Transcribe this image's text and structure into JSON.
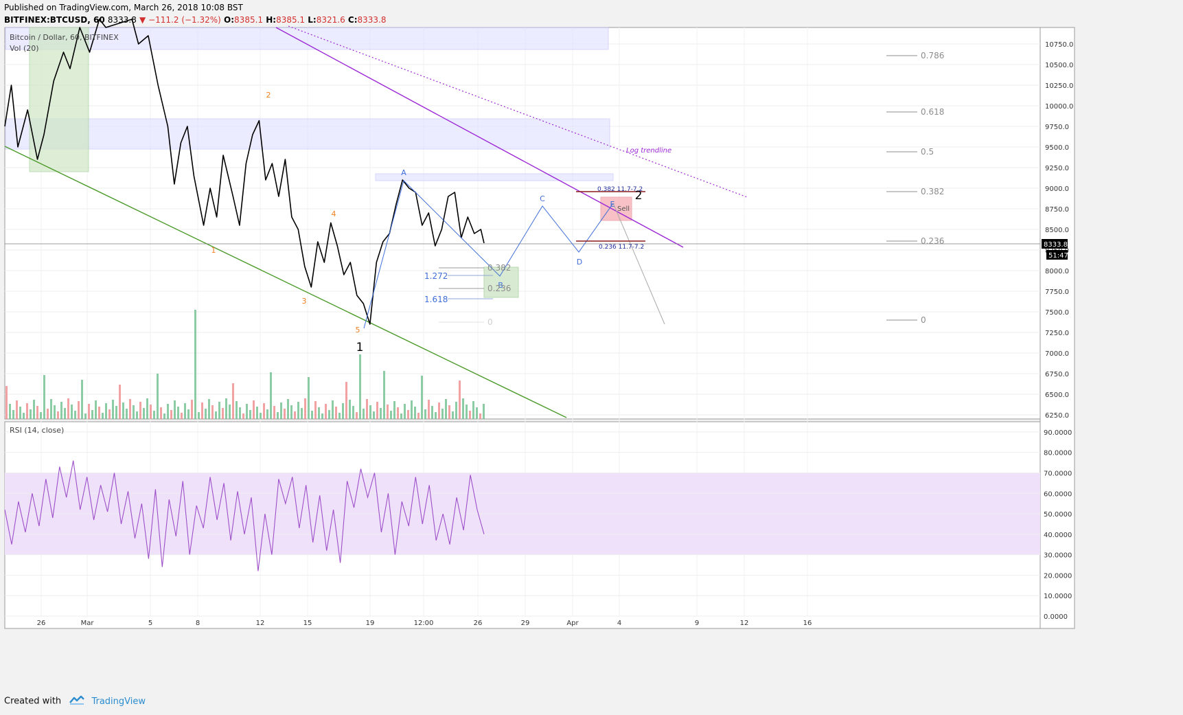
{
  "header": {
    "published": "Published on TradingView.com, March 26, 2018 10:08 BST",
    "symbol": "BITFINEX:BTCUSD, 60",
    "last": "8333.8",
    "change": "▼ −111.2 (−1.32%)",
    "ohlc": [
      {
        "label": "O:",
        "value": "8385.1"
      },
      {
        "label": "H:",
        "value": "8385.1"
      },
      {
        "label": "L:",
        "value": "8321.6"
      },
      {
        "label": "C:",
        "value": "8333.8"
      }
    ]
  },
  "footer": {
    "created_with": "Created with",
    "brand": "TradingView"
  },
  "colors": {
    "price": "#000000",
    "volume_up": "#6fbf8f",
    "volume_down": "#ef8b8b",
    "green_trend": "#4c9a2a",
    "purple_trend": "#9c27d6",
    "rsi": "#9c4fc8",
    "rsi_band": "#f0e1fb",
    "fib_box": "#dfe1ff",
    "abcde": "#3f6ed8",
    "wave_labels": "#f07f1e",
    "sell_box": "#f6a8ae",
    "grey": "#8c8c8c"
  },
  "chart_data": [
    {
      "type": "line",
      "title": "Bitcoin / Dollar, 60, BITFINEX",
      "indicator": "Vol (20)",
      "x_ticks": [
        "26",
        "Mar",
        "5",
        "8",
        "12",
        "15",
        "19",
        "12:00",
        "26",
        "29",
        "Apr",
        "4",
        "9",
        "12",
        "16"
      ],
      "y_ticks": [
        "10750.0",
        "10500.0",
        "10250.0",
        "10000.0",
        "9750.0",
        "9500.0",
        "9250.0",
        "9000.0",
        "8750.0",
        "8500.0",
        "8250.0",
        "8000.0",
        "7750.0",
        "7500.0",
        "7250.0",
        "7000.0",
        "6750.0",
        "6500.0",
        "6250.0"
      ],
      "ylim": [
        6200,
        10950
      ],
      "current_price": "8333.8",
      "countdown": "51:47",
      "price_series": [
        [
          0,
          9750
        ],
        [
          2,
          10250
        ],
        [
          4,
          9500
        ],
        [
          7,
          9950
        ],
        [
          10,
          9350
        ],
        [
          12,
          9650
        ],
        [
          15,
          10300
        ],
        [
          18,
          10650
        ],
        [
          20,
          10450
        ],
        [
          23,
          10950
        ],
        [
          26,
          10650
        ],
        [
          29,
          11050
        ],
        [
          31,
          10950
        ],
        [
          39,
          11050
        ],
        [
          41,
          10750
        ],
        [
          44,
          10850
        ],
        [
          47,
          10250
        ],
        [
          50,
          9750
        ],
        [
          52,
          9050
        ],
        [
          54,
          9550
        ],
        [
          56,
          9750
        ],
        [
          58,
          9150
        ],
        [
          61,
          8550
        ],
        [
          63,
          9000
        ],
        [
          65,
          8650
        ],
        [
          67,
          9400
        ],
        [
          70,
          8900
        ],
        [
          72,
          8550
        ],
        [
          74,
          9300
        ],
        [
          76,
          9650
        ],
        [
          78,
          9820
        ],
        [
          80,
          9100
        ],
        [
          82,
          9300
        ],
        [
          84,
          8900
        ],
        [
          86,
          9350
        ],
        [
          88,
          8650
        ],
        [
          90,
          8500
        ],
        [
          92,
          8050
        ],
        [
          94,
          7800
        ],
        [
          96,
          8350
        ],
        [
          98,
          8100
        ],
        [
          100,
          8580
        ],
        [
          102,
          8300
        ],
        [
          104,
          7950
        ],
        [
          106,
          8100
        ],
        [
          108,
          7700
        ],
        [
          110,
          7600
        ],
        [
          112,
          7350
        ],
        [
          114,
          8100
        ],
        [
          116,
          8350
        ],
        [
          118,
          8450
        ],
        [
          120,
          8800
        ],
        [
          122,
          9100
        ],
        [
          124,
          9000
        ],
        [
          126,
          8950
        ],
        [
          128,
          8550
        ],
        [
          130,
          8700
        ],
        [
          132,
          8300
        ],
        [
          134,
          8500
        ],
        [
          136,
          8900
        ],
        [
          138,
          8950
        ],
        [
          140,
          8400
        ],
        [
          142,
          8650
        ],
        [
          144,
          8450
        ],
        [
          146,
          8500
        ],
        [
          147,
          8334
        ]
      ],
      "rsi": {
        "label": "RSI (14, close)",
        "ylim": [
          0,
          95
        ],
        "band": [
          30,
          70
        ],
        "y_ticks": [
          "90.0000",
          "80.0000",
          "70.0000",
          "60.0000",
          "50.0000",
          "40.0000",
          "30.0000",
          "20.0000",
          "10.0000",
          "0.0000"
        ],
        "values": [
          52,
          35,
          56,
          41,
          60,
          44,
          67,
          48,
          73,
          58,
          76,
          52,
          68,
          47,
          64,
          51,
          70,
          45,
          61,
          38,
          55,
          28,
          62,
          24,
          57,
          39,
          66,
          30,
          54,
          43,
          68,
          47,
          65,
          37,
          61,
          40,
          58,
          22,
          50,
          30,
          67,
          55,
          68,
          43,
          64,
          36,
          59,
          32,
          52,
          26,
          66,
          53,
          72,
          58,
          70,
          41,
          60,
          30,
          56,
          44,
          68,
          45,
          64,
          37,
          50,
          35,
          58,
          42,
          69,
          52,
          40
        ]
      },
      "volume_peak_note": "volume bars (pink/green)",
      "annotations": {
        "wave_labels_orange": [
          "2",
          "4",
          "1",
          "3",
          "5"
        ],
        "wave_labels_black": [
          "1",
          "2"
        ],
        "abcde": [
          "A",
          "B",
          "C",
          "D",
          "E"
        ],
        "sell_label": "Sell",
        "log_trendline": "Log trendline",
        "fib_right": [
          "0.786",
          "0.618",
          "0.5",
          "0.382",
          "0.236",
          "0"
        ],
        "fib_mid": [
          "0.382",
          "0.236",
          "0"
        ],
        "fib_ext": [
          "1.272",
          "1.618"
        ],
        "target_top": "0.382 11.7-7.2",
        "target_bottom": "0.236 11.7-7.2"
      }
    }
  ]
}
